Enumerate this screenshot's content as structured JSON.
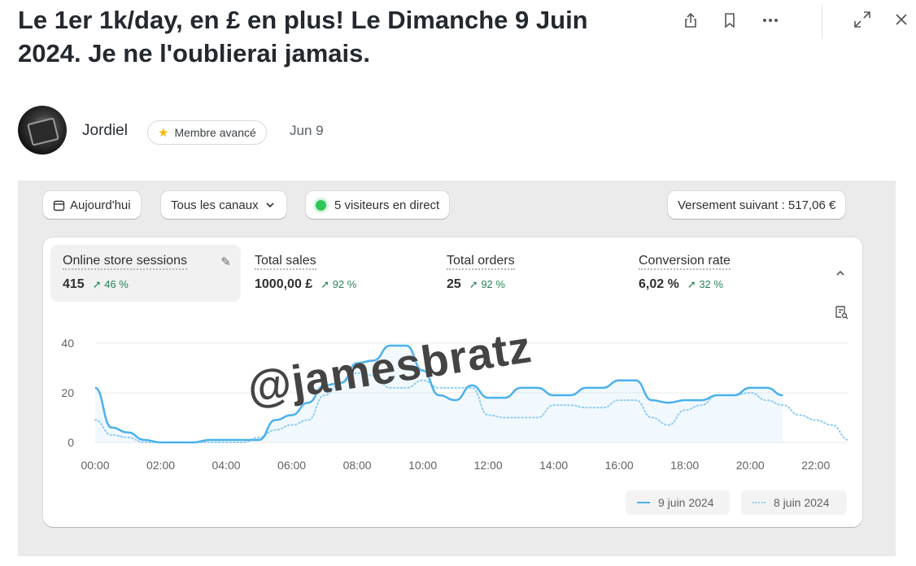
{
  "post": {
    "title": "Le 1er 1k/day, en £ en plus! Le Dimanche 9 Juin 2024. Je ne l'oublierai jamais.",
    "author": "Jordiel",
    "badge": "Membre avancé",
    "date": "Jun 9"
  },
  "toolbar_icons": [
    "share-icon",
    "bookmark-icon",
    "more-icon",
    "expand-icon",
    "close-icon"
  ],
  "dashboard": {
    "date_filter": "Aujourd'hui",
    "channel_filter": "Tous les canaux",
    "live_visitors": "5 visiteurs en direct",
    "next_payout": "Versement suivant : 517,06 €",
    "metrics": [
      {
        "label": "Online store sessions",
        "value": "415",
        "change": "46 %"
      },
      {
        "label": "Total sales",
        "value": "1000,00 £",
        "change": "92 %"
      },
      {
        "label": "Total orders",
        "value": "25",
        "change": "92 %"
      },
      {
        "label": "Conversion rate",
        "value": "6,02 %",
        "change": "32 %"
      }
    ]
  },
  "watermark": "@jamesbratz",
  "colors": {
    "series_current": "#4ab1ec",
    "series_previous": "#8fcdf3",
    "positive_change": "#29845a",
    "live_dot": "#2ec55b"
  },
  "chart_data": {
    "type": "line",
    "x": [
      "00:00",
      "00:30",
      "01:00",
      "01:30",
      "02:00",
      "02:30",
      "03:00",
      "03:30",
      "04:00",
      "04:30",
      "05:00",
      "05:30",
      "06:00",
      "06:30",
      "07:00",
      "07:30",
      "08:00",
      "08:30",
      "09:00",
      "09:30",
      "10:00",
      "10:30",
      "11:00",
      "11:30",
      "12:00",
      "12:30",
      "13:00",
      "13:30",
      "14:00",
      "14:30",
      "15:00",
      "15:30",
      "16:00",
      "16:30",
      "17:00",
      "17:30",
      "18:00",
      "18:30",
      "19:00",
      "19:30",
      "20:00",
      "20:30",
      "21:00",
      "21:30",
      "22:00",
      "22:30",
      "23:00"
    ],
    "x_ticks": [
      "00:00",
      "02:00",
      "04:00",
      "06:00",
      "08:00",
      "10:00",
      "12:00",
      "14:00",
      "16:00",
      "18:00",
      "20:00",
      "22:00"
    ],
    "y_ticks": [
      "0",
      "20",
      "40"
    ],
    "ylim": [
      0,
      40
    ],
    "series": [
      {
        "name": "9 juin 2024",
        "style": "solid",
        "values": [
          22,
          6,
          4,
          1,
          0,
          0,
          0,
          1,
          1,
          1,
          1,
          9,
          11,
          16,
          23,
          24,
          32,
          33,
          39,
          39,
          29,
          19,
          17,
          23,
          18,
          18,
          22,
          22,
          19,
          19,
          22,
          22,
          25,
          25,
          17,
          16,
          17,
          17,
          19,
          19,
          22,
          22,
          19,
          null,
          null,
          null,
          null
        ]
      },
      {
        "name": "8 juin 2024",
        "style": "dotted",
        "values": [
          9,
          3,
          2,
          0,
          0,
          0,
          0,
          0,
          0,
          0,
          2,
          5,
          7,
          9,
          19,
          24,
          28,
          27,
          22,
          22,
          25,
          22,
          22,
          22,
          11,
          10,
          10,
          10,
          15,
          15,
          14,
          14,
          17,
          17,
          10,
          7,
          13,
          15,
          19,
          19,
          20,
          17,
          15,
          11,
          9,
          7,
          1
        ]
      }
    ]
  }
}
